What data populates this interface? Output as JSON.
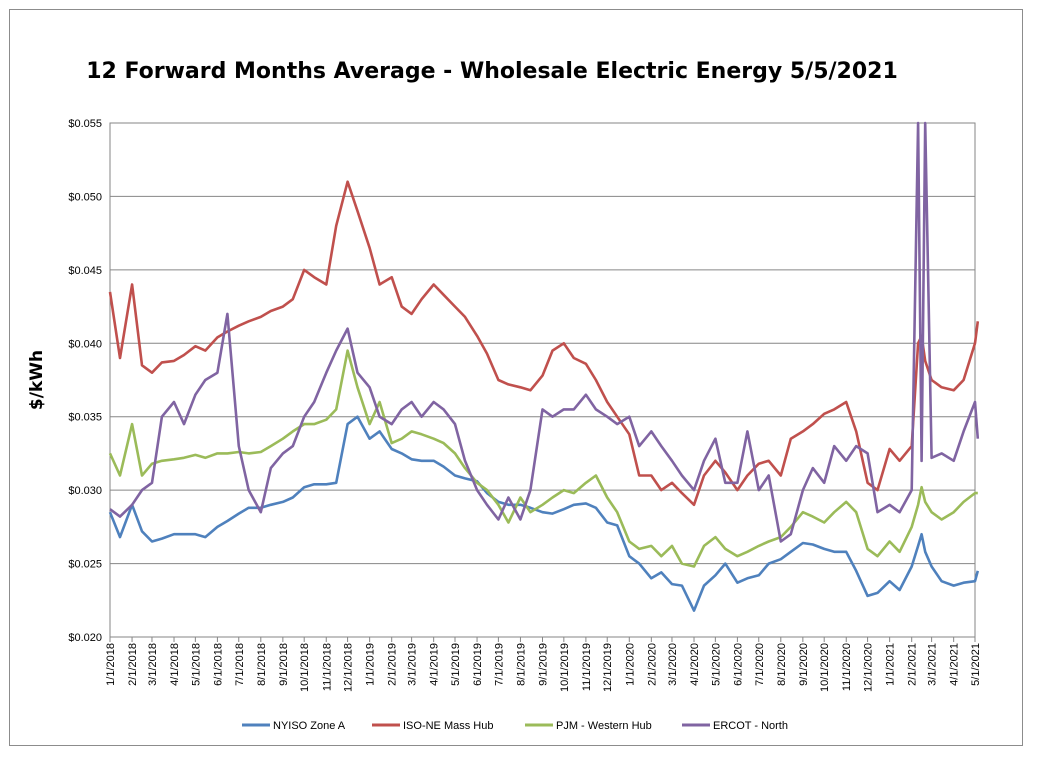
{
  "chart_data": {
    "type": "line",
    "title": "12 Forward Months Average - Wholesale Electric Energy 5/5/2021",
    "ylabel": "$/kWh",
    "xlabel": "",
    "ylim": [
      0.02,
      0.055
    ],
    "y_ticks": [
      0.02,
      0.025,
      0.03,
      0.035,
      0.04,
      0.045,
      0.05,
      0.055
    ],
    "y_tick_labels": [
      "$0.020",
      "$0.025",
      "$0.030",
      "$0.035",
      "$0.040",
      "$0.045",
      "$0.050",
      "$0.055"
    ],
    "x_tick_labels": [
      "1/1/2018",
      "2/1/2018",
      "3/1/2018",
      "4/1/2018",
      "5/1/2018",
      "6/1/2018",
      "7/1/2018",
      "8/1/2018",
      "9/1/2018",
      "10/1/2018",
      "11/1/2018",
      "12/1/2018",
      "1/1/2019",
      "2/1/2019",
      "3/1/2019",
      "4/1/2019",
      "5/1/2019",
      "6/1/2019",
      "7/1/2019",
      "8/1/2019",
      "9/1/2019",
      "10/1/2019",
      "11/1/2019",
      "12/1/2019",
      "1/1/2020",
      "2/1/2020",
      "3/1/2020",
      "4/1/2020",
      "5/1/2020",
      "6/1/2020",
      "7/1/2020",
      "8/1/2020",
      "9/1/2020",
      "10/1/2020",
      "11/1/2020",
      "12/1/2020",
      "1/1/2021",
      "2/1/2021",
      "3/1/2021",
      "4/1/2021",
      "5/1/2021"
    ],
    "grid": "horizontal",
    "legend": "bottom",
    "x": [
      "1/1/2018",
      "1/15/2018",
      "2/1/2018",
      "2/15/2018",
      "3/1/2018",
      "3/15/2018",
      "4/1/2018",
      "4/15/2018",
      "5/1/2018",
      "5/15/2018",
      "6/1/2018",
      "6/15/2018",
      "7/1/2018",
      "7/15/2018",
      "8/1/2018",
      "8/15/2018",
      "9/1/2018",
      "9/15/2018",
      "10/1/2018",
      "10/15/2018",
      "11/1/2018",
      "11/15/2018",
      "12/1/2018",
      "12/15/2018",
      "1/1/2019",
      "1/15/2019",
      "2/1/2019",
      "2/15/2019",
      "3/1/2019",
      "3/15/2019",
      "4/1/2019",
      "4/15/2019",
      "5/1/2019",
      "5/15/2019",
      "6/1/2019",
      "6/15/2019",
      "7/1/2019",
      "7/15/2019",
      "8/1/2019",
      "8/15/2019",
      "9/1/2019",
      "9/15/2019",
      "10/1/2019",
      "10/15/2019",
      "11/1/2019",
      "11/15/2019",
      "12/1/2019",
      "12/15/2019",
      "1/1/2020",
      "1/15/2020",
      "2/1/2020",
      "2/15/2020",
      "3/1/2020",
      "3/15/2020",
      "4/1/2020",
      "4/15/2020",
      "5/1/2020",
      "5/15/2020",
      "6/1/2020",
      "6/15/2020",
      "7/1/2020",
      "7/15/2020",
      "8/1/2020",
      "8/15/2020",
      "9/1/2020",
      "9/15/2020",
      "10/1/2020",
      "10/15/2020",
      "11/1/2020",
      "11/15/2020",
      "12/1/2020",
      "12/15/2020",
      "1/1/2021",
      "1/15/2021",
      "2/1/2021",
      "2/10/2021",
      "2/15/2021",
      "2/20/2021",
      "3/1/2021",
      "3/15/2021",
      "4/1/2021",
      "4/15/2021",
      "5/1/2021",
      "5/5/2021"
    ],
    "series": [
      {
        "name": "NYISO Zone A",
        "color": "#4f81bd",
        "values": [
          0.0285,
          0.0268,
          0.029,
          0.0272,
          0.0265,
          0.0267,
          0.027,
          0.027,
          0.027,
          0.0268,
          0.0275,
          0.0279,
          0.0284,
          0.0288,
          0.0288,
          0.029,
          0.0292,
          0.0295,
          0.0302,
          0.0304,
          0.0304,
          0.0305,
          0.0345,
          0.035,
          0.0335,
          0.034,
          0.0328,
          0.0325,
          0.0321,
          0.032,
          0.032,
          0.0316,
          0.031,
          0.0308,
          0.0306,
          0.0298,
          0.0292,
          0.029,
          0.029,
          0.0288,
          0.0285,
          0.0284,
          0.0287,
          0.029,
          0.0291,
          0.0288,
          0.0278,
          0.0276,
          0.0255,
          0.025,
          0.024,
          0.0244,
          0.0236,
          0.0235,
          0.0218,
          0.0235,
          0.0242,
          0.025,
          0.0237,
          0.024,
          0.0242,
          0.025,
          0.0253,
          0.0258,
          0.0264,
          0.0263,
          0.026,
          0.0258,
          0.0258,
          0.0245,
          0.0228,
          0.023,
          0.0238,
          0.0232,
          0.0248,
          0.0262,
          0.027,
          0.0258,
          0.0248,
          0.0238,
          0.0235,
          0.0237,
          0.0238,
          0.0245
        ]
      },
      {
        "name": "ISO-NE Mass Hub",
        "color": "#c0504d",
        "values": [
          0.0435,
          0.039,
          0.044,
          0.0385,
          0.038,
          0.0387,
          0.0388,
          0.0392,
          0.0398,
          0.0395,
          0.0404,
          0.0408,
          0.0412,
          0.0415,
          0.0418,
          0.0422,
          0.0425,
          0.043,
          0.045,
          0.0445,
          0.044,
          0.048,
          0.051,
          0.049,
          0.0465,
          0.044,
          0.0445,
          0.0425,
          0.042,
          0.043,
          0.044,
          0.0433,
          0.0425,
          0.0418,
          0.0405,
          0.0393,
          0.0375,
          0.0372,
          0.037,
          0.0368,
          0.0378,
          0.0395,
          0.04,
          0.039,
          0.0386,
          0.0375,
          0.036,
          0.035,
          0.0338,
          0.031,
          0.031,
          0.03,
          0.0305,
          0.0298,
          0.029,
          0.031,
          0.032,
          0.0312,
          0.03,
          0.031,
          0.0318,
          0.032,
          0.031,
          0.0335,
          0.034,
          0.0345,
          0.0352,
          0.0355,
          0.036,
          0.034,
          0.0305,
          0.03,
          0.0328,
          0.032,
          0.033,
          0.04,
          0.0405,
          0.0388,
          0.0375,
          0.037,
          0.0368,
          0.0375,
          0.04,
          0.0415
        ]
      },
      {
        "name": "PJM - Western Hub",
        "color": "#9bbb59",
        "values": [
          0.0325,
          0.031,
          0.0345,
          0.031,
          0.0318,
          0.032,
          0.0321,
          0.0322,
          0.0324,
          0.0322,
          0.0325,
          0.0325,
          0.0326,
          0.0325,
          0.0326,
          0.033,
          0.0335,
          0.034,
          0.0345,
          0.0345,
          0.0348,
          0.0355,
          0.0395,
          0.037,
          0.0345,
          0.036,
          0.0332,
          0.0335,
          0.034,
          0.0338,
          0.0335,
          0.0332,
          0.0325,
          0.0315,
          0.0305,
          0.03,
          0.029,
          0.0278,
          0.0295,
          0.0285,
          0.029,
          0.0295,
          0.03,
          0.0298,
          0.0305,
          0.031,
          0.0295,
          0.0285,
          0.0265,
          0.026,
          0.0262,
          0.0255,
          0.0262,
          0.025,
          0.0248,
          0.0262,
          0.0268,
          0.026,
          0.0255,
          0.0258,
          0.0262,
          0.0265,
          0.0268,
          0.0275,
          0.0285,
          0.0282,
          0.0278,
          0.0285,
          0.0292,
          0.0285,
          0.026,
          0.0255,
          0.0265,
          0.0258,
          0.0275,
          0.029,
          0.0302,
          0.0292,
          0.0285,
          0.028,
          0.0285,
          0.0292,
          0.0298,
          0.0298
        ]
      },
      {
        "name": "ERCOT - North",
        "color": "#8064a2",
        "values": [
          0.0287,
          0.0282,
          0.029,
          0.03,
          0.0305,
          0.035,
          0.036,
          0.0345,
          0.0365,
          0.0375,
          0.038,
          0.042,
          0.033,
          0.03,
          0.0285,
          0.0315,
          0.0325,
          0.033,
          0.035,
          0.036,
          0.038,
          0.0395,
          0.041,
          0.038,
          0.037,
          0.035,
          0.0345,
          0.0355,
          0.036,
          0.035,
          0.036,
          0.0355,
          0.0345,
          0.032,
          0.03,
          0.029,
          0.028,
          0.0295,
          0.028,
          0.03,
          0.0355,
          0.035,
          0.0355,
          0.0355,
          0.0365,
          0.0355,
          0.035,
          0.0345,
          0.035,
          0.033,
          0.034,
          0.033,
          0.032,
          0.031,
          0.03,
          0.032,
          0.0335,
          0.0305,
          0.0305,
          0.034,
          0.03,
          0.031,
          0.0265,
          0.027,
          0.03,
          0.0315,
          0.0305,
          0.033,
          0.032,
          0.033,
          0.0325,
          0.0285,
          0.029,
          0.0285,
          0.03,
          0.059,
          0.032,
          0.059,
          0.0322,
          0.0325,
          0.032,
          0.034,
          0.036,
          0.0335
        ]
      }
    ]
  }
}
